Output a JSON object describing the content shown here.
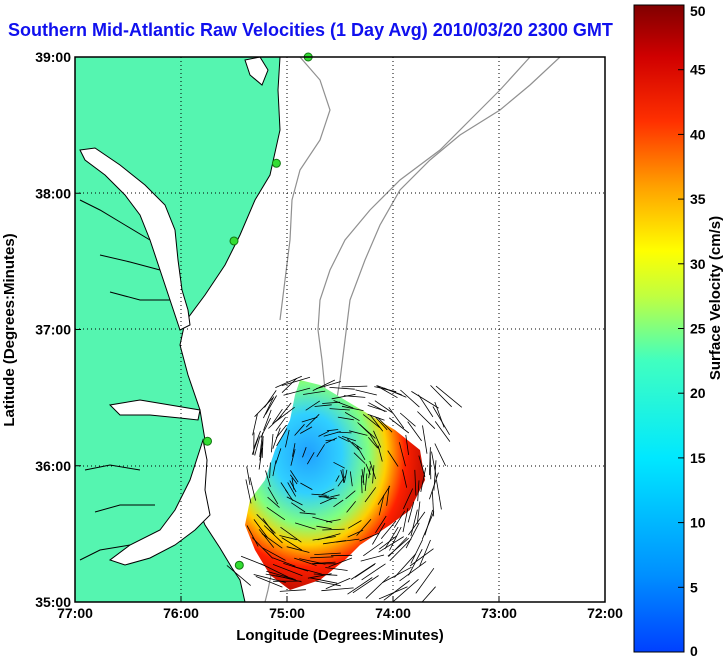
{
  "title": "Southern Mid-Atlantic Raw Velocities (1 Day Avg) 2010/03/20 2300 GMT",
  "axes": {
    "xlabel": "Longitude (Degrees:Minutes)",
    "ylabel": "Latitude (Degrees:Minutes)",
    "x_ticks": [
      "77:00",
      "76:00",
      "75:00",
      "74:00",
      "73:00",
      "72:00"
    ],
    "y_ticks": [
      "39:00",
      "38:00",
      "37:00",
      "36:00",
      "35:00"
    ],
    "x_range_deg": [
      -77,
      -72
    ],
    "y_range_deg": [
      35,
      39
    ],
    "grid": "dotted"
  },
  "colorbar": {
    "label": "Surface Velocity (cm/s)",
    "ticks": [
      "0",
      "5",
      "10",
      "15",
      "20",
      "25",
      "30",
      "35",
      "40",
      "45",
      "50"
    ],
    "range": [
      0,
      50
    ],
    "colormap": "jet"
  },
  "colors": {
    "land": "#55f5b0",
    "coastline": "#000000",
    "bathymetry": "#909090",
    "title": "#1010ee",
    "station": "#33dd33"
  },
  "chart_data": {
    "type": "quiver-map",
    "stations": [
      {
        "lon": -74.8,
        "lat": 39.0
      },
      {
        "lon": -75.1,
        "lat": 38.22
      },
      {
        "lon": -75.5,
        "lat": 37.65
      },
      {
        "lon": -75.75,
        "lat": 36.18
      },
      {
        "lon": -75.45,
        "lat": 35.27
      }
    ]
  }
}
